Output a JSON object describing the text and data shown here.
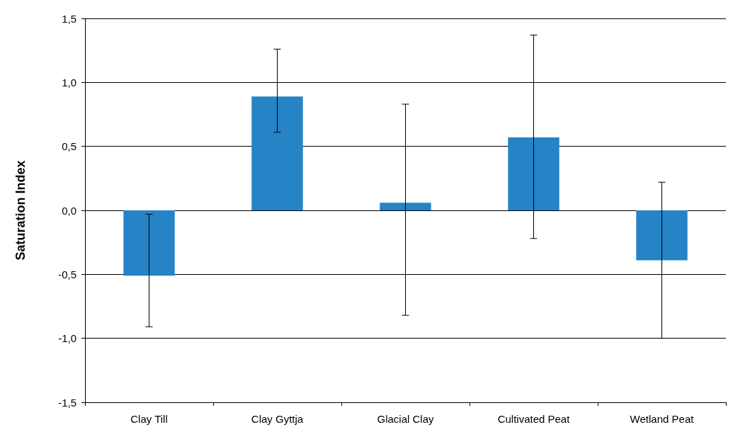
{
  "chart_data": {
    "type": "bar",
    "ylabel": "Saturation Index",
    "categories": [
      "Clay Till",
      "Clay Gyttja",
      "Glacial Clay",
      "Cultivated Peat",
      "Wetland Peat"
    ],
    "values": [
      -0.51,
      0.89,
      0.06,
      0.57,
      -0.39
    ],
    "errors": [
      [
        -0.91,
        -0.03
      ],
      [
        0.61,
        1.26
      ],
      [
        -0.82,
        0.83
      ],
      [
        -0.22,
        1.37
      ],
      [
        -1.0,
        0.22
      ]
    ],
    "color": "#2683c6",
    "ylim": [
      -1.5,
      1.5
    ],
    "yticks": [
      {
        "value": -1.5,
        "label": "-1,5"
      },
      {
        "value": -1,
        "label": "-1,0"
      },
      {
        "value": -0.5,
        "label": "-0,5"
      },
      {
        "value": 0,
        "label": "0,0"
      },
      {
        "value": 0.5,
        "label": "0,5"
      },
      {
        "value": 1,
        "label": "1,0"
      },
      {
        "value": 1.5,
        "label": "1,5"
      }
    ],
    "grid": "y"
  }
}
